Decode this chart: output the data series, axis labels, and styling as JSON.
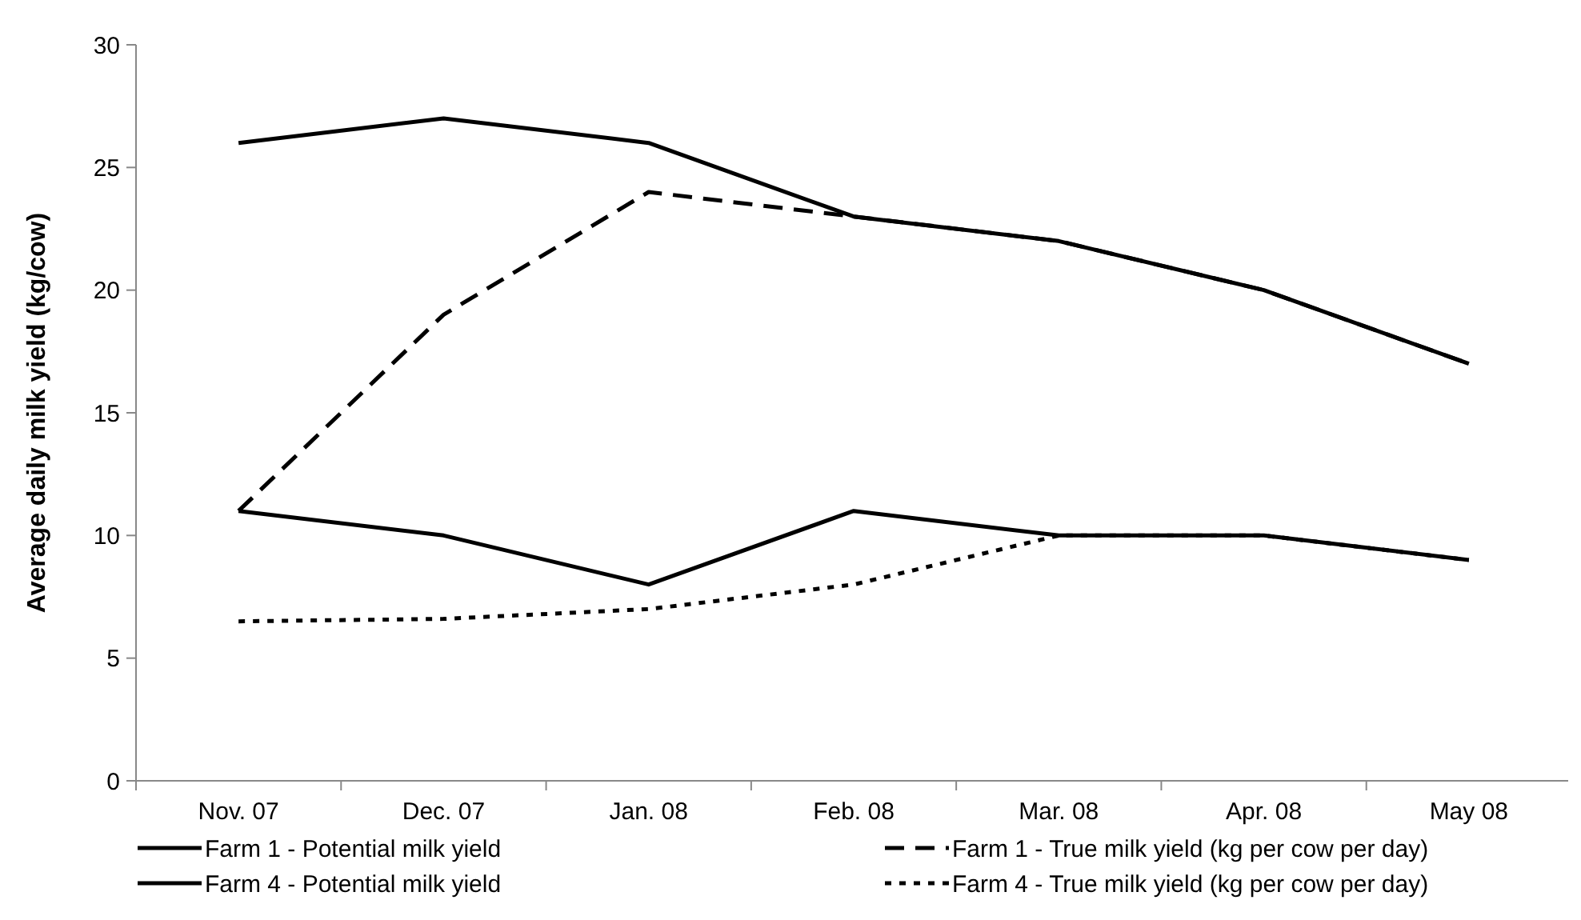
{
  "chart_data": {
    "type": "line",
    "ylabel": "Average daily milk yield (kg/cow)",
    "categories": [
      "Nov. 07",
      "Dec. 07",
      "Jan. 08",
      "Feb. 08",
      "Mar. 08",
      "Apr. 08",
      "May 08"
    ],
    "ylim": [
      0,
      30
    ],
    "yticks": [
      0,
      5,
      10,
      15,
      20,
      25,
      30
    ],
    "grid": false,
    "legend": "bottom",
    "marker": "none",
    "series": [
      {
        "name": "Farm 1 - Potential milk yield",
        "color": "#000000",
        "line_style": "solid",
        "values": [
          26,
          27,
          26,
          23,
          22,
          20,
          17
        ]
      },
      {
        "name": "Farm 1 - True milk yield (kg per cow per day)",
        "color": "#000000",
        "line_style": "dashed",
        "values": [
          11,
          19,
          24,
          23,
          22,
          20,
          17
        ]
      },
      {
        "name": "Farm 4 - Potential milk yield",
        "color": "#000000",
        "line_style": "solid",
        "values": [
          11,
          10,
          8,
          11,
          10,
          10,
          9
        ]
      },
      {
        "name": "Farm 4 - True milk yield (kg per cow per day)",
        "color": "#000000",
        "line_style": "dotted",
        "values": [
          6.5,
          6.6,
          7,
          8,
          10,
          10,
          9
        ]
      }
    ]
  }
}
